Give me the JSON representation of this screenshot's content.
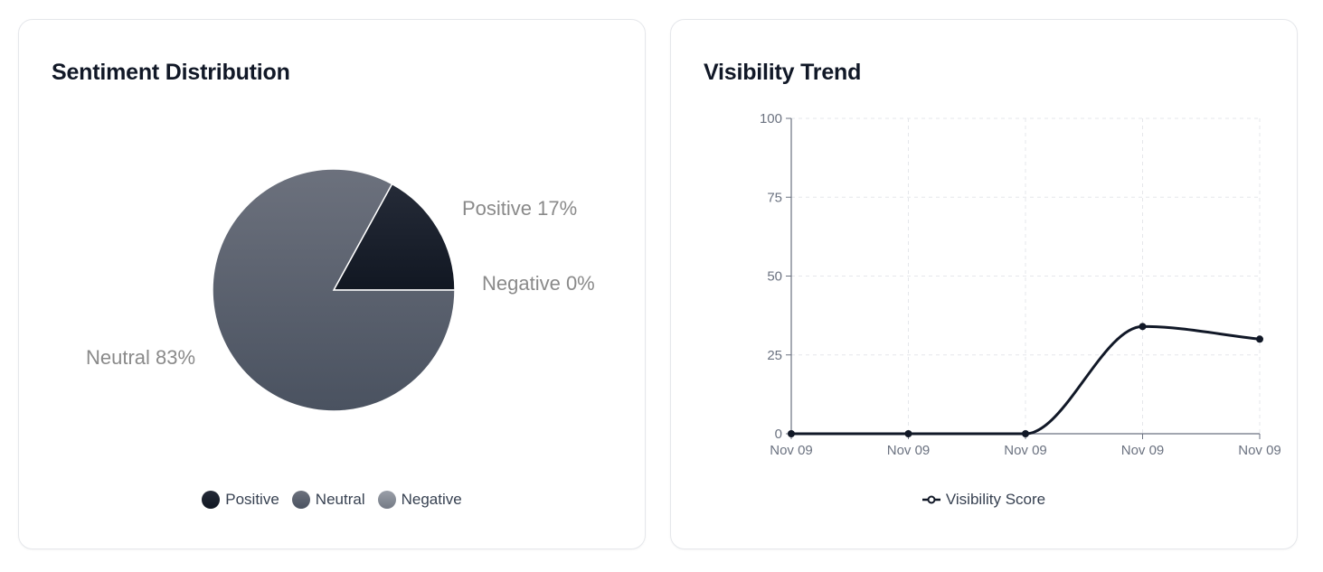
{
  "colors": {
    "positive": "#161c29",
    "neutral": "#5b6270",
    "negative": "#858b96",
    "line": "#111827",
    "axis": "#6b7280",
    "grid": "#e5e7eb",
    "label": "#8a8a8a"
  },
  "sentiment_card": {
    "title": "Sentiment Distribution",
    "slice_labels": {
      "positive": "Positive 17%",
      "negative": "Negative 0%",
      "neutral": "Neutral 83%"
    },
    "legend": [
      "Positive",
      "Neutral",
      "Negative"
    ]
  },
  "trend_card": {
    "title": "Visibility Trend",
    "legend_label": "Visibility Score"
  },
  "chart_data": [
    {
      "type": "pie",
      "title": "Sentiment Distribution",
      "categories": [
        "Positive",
        "Neutral",
        "Negative"
      ],
      "values": [
        17,
        83,
        0
      ],
      "unit": "%"
    },
    {
      "type": "line",
      "title": "Visibility Trend",
      "x": [
        "Nov 09",
        "Nov 09",
        "Nov 09",
        "Nov 09",
        "Nov 09"
      ],
      "series": [
        {
          "name": "Visibility Score",
          "values": [
            0,
            0,
            0,
            34,
            30
          ]
        }
      ],
      "ylim": [
        0,
        100
      ],
      "yticks": [
        0,
        25,
        50,
        75,
        100
      ],
      "grid": true,
      "xlabel": "",
      "ylabel": ""
    }
  ]
}
